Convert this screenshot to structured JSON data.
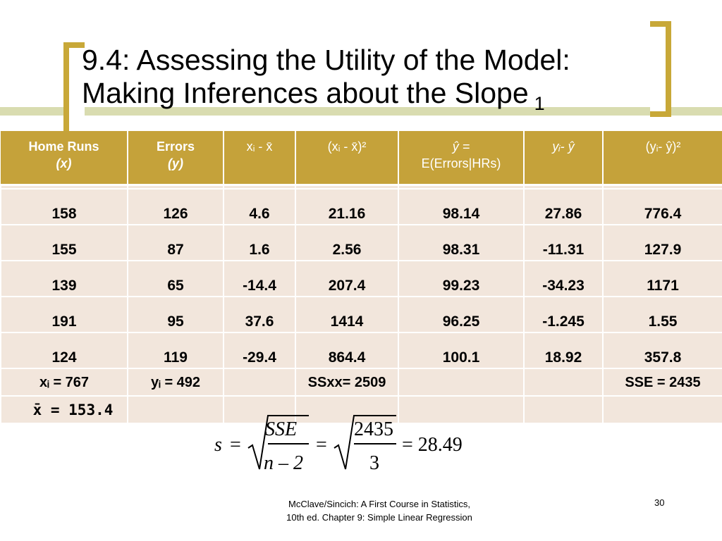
{
  "title": {
    "line1": "9.4: Assessing the Utility of the Model:",
    "line2": "Making Inferences about the Slope",
    "glyph": "",
    "subscript": "1"
  },
  "table": {
    "headers": [
      {
        "line1": "Home Runs",
        "line2": "(x)"
      },
      {
        "line1": "Errors",
        "line2": "(y)"
      },
      {
        "line1": "xᵢ - x̄",
        "line2": ""
      },
      {
        "line1": "(xᵢ - x̄)²",
        "line2": ""
      },
      {
        "line1": "ŷ =",
        "line2": "E(Errors|HRs)"
      },
      {
        "line1": "yᵢ- ŷ",
        "line2": ""
      },
      {
        "line1": "(yᵢ- ŷ)²",
        "line2": ""
      }
    ],
    "rows": [
      [
        "158",
        "126",
        "4.6",
        "21.16",
        "98.14",
        "27.86",
        "776.4"
      ],
      [
        "155",
        "87",
        "1.6",
        "2.56",
        "98.31",
        "-11.31",
        "127.9"
      ],
      [
        "139",
        "65",
        "-14.4",
        "207.4",
        "99.23",
        "-34.23",
        "1171"
      ],
      [
        "191",
        "95",
        "37.6",
        "1414",
        "96.25",
        "-1.245",
        "1.55"
      ],
      [
        "124",
        "119",
        "-29.4",
        "864.4",
        "100.1",
        "18.92",
        "357.8"
      ]
    ],
    "sum_row": [
      "xᵢ = 767",
      "yᵢ = 492",
      "",
      "SSxx= 2509",
      "",
      "",
      "SSE = 2435"
    ],
    "mean_row": [
      "x̄ = 153.4",
      "",
      "",
      "",
      "",
      "",
      ""
    ]
  },
  "formula": {
    "s": "s",
    "eq": "=",
    "sse": "SSE",
    "n_minus_2": "n – 2",
    "num": "2435",
    "den": "3",
    "result": "= 28.49"
  },
  "footer": {
    "line1": "McClave/Sincich: A First Course in Statistics,",
    "line2": "10th ed. Chapter 9: Simple Linear Regression",
    "page": "30"
  },
  "colors": {
    "header_bg": "#c5a23a",
    "cell_bg": "#f2e6dc",
    "bracket": "#c8a838",
    "deco": "#d9dcb0"
  }
}
